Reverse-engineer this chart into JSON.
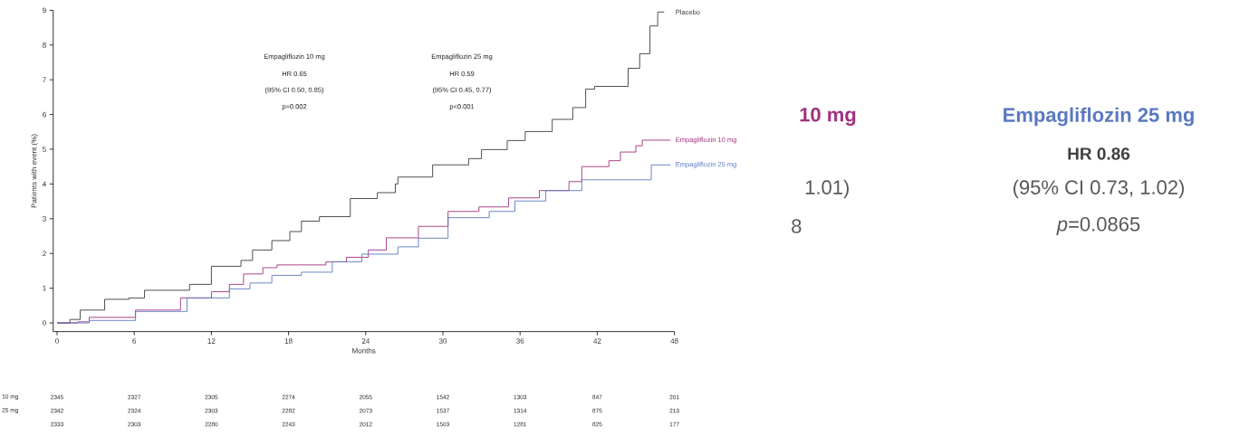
{
  "chart_data": {
    "type": "step",
    "xlabel": "Months",
    "ylabel": "Patients with event (%)",
    "legend": "right",
    "xlim": [
      -0.3,
      48
    ],
    "ylim": [
      -0.25,
      9
    ],
    "xticks": [
      0,
      6,
      12,
      18,
      24,
      30,
      36,
      42,
      48
    ],
    "yticks": [
      0,
      1,
      2,
      3,
      4,
      5,
      6,
      7,
      8,
      9
    ],
    "series": [
      {
        "name": "Placebo",
        "color": "#3c3c3c",
        "x": [
          0,
          1,
          1.8,
          3.7,
          5.6,
          6.8,
          10.3,
          12,
          14.3,
          15.2,
          16.7,
          18.1,
          19,
          20.4,
          22.8,
          24.9,
          26.3,
          26.5,
          29.2,
          32,
          33,
          35,
          36.4,
          38.5,
          40.1,
          41.1,
          41.8,
          44.4,
          45.3,
          46.1,
          46.7,
          47.2
        ],
        "values": [
          0,
          0.1,
          0.37,
          0.68,
          0.72,
          0.94,
          1.11,
          1.63,
          1.8,
          2.1,
          2.37,
          2.63,
          2.93,
          3.06,
          3.58,
          3.75,
          4.0,
          4.2,
          4.55,
          4.73,
          4.99,
          5.25,
          5.51,
          5.86,
          6.2,
          6.73,
          6.81,
          7.33,
          7.75,
          8.55,
          8.95,
          8.95
        ]
      },
      {
        "name": "Empagliflozin 10 mg",
        "color": "#a0307f",
        "x": [
          0,
          1.6,
          2.5,
          6.1,
          9.6,
          12,
          13.4,
          14.5,
          16,
          17.1,
          20.9,
          22.5,
          24.2,
          25.6,
          28.1,
          30.4,
          32.8,
          35.1,
          37.5,
          39.8,
          40.8,
          42.9,
          43.8,
          45,
          45.5,
          47.7
        ],
        "values": [
          0,
          0.03,
          0.16,
          0.37,
          0.72,
          0.9,
          1.11,
          1.41,
          1.59,
          1.67,
          1.76,
          1.89,
          2.1,
          2.45,
          2.78,
          3.21,
          3.34,
          3.6,
          3.81,
          4.07,
          4.5,
          4.67,
          4.92,
          5.1,
          5.26,
          5.26
        ]
      },
      {
        "name": "Empagliflozin 25 mg",
        "color": "#5a78c0",
        "x": [
          0,
          2.5,
          6.1,
          10.1,
          13.4,
          15,
          16.7,
          19,
          21.4,
          23.7,
          26.5,
          28.1,
          30.4,
          33.6,
          35.6,
          38,
          40.8,
          46.2,
          47.7
        ],
        "values": [
          0,
          0.07,
          0.33,
          0.72,
          0.98,
          1.15,
          1.37,
          1.46,
          1.76,
          1.98,
          2.19,
          2.44,
          3.03,
          3.21,
          3.51,
          3.81,
          4.12,
          4.55,
          4.55
        ]
      }
    ],
    "annotations": [
      "Empagliflozin 10 mg",
      "HR 0.65",
      "(95% CI 0.50, 0.85)",
      "p=0.002",
      "Empagliflozin 25 mg",
      "HR 0.59",
      "(95% CI 0.45, 0.77)",
      "p<0.001",
      "10 mg",
      "1.01)",
      "8",
      "Empagliflozin 25 mg",
      "HR 0.86",
      "(95% CI 0.73, 1.02)",
      "*p*=0.0865",
      "10 mg",
      "25 mg",
      "2345",
      "2327",
      "2305",
      "2274",
      "2055",
      "1542",
      "1303",
      "847",
      "201",
      "2342",
      "2324",
      "2303",
      "2282",
      "2073",
      "1537",
      "1314",
      "875",
      "213",
      "2333",
      "2303",
      "2280",
      "2243",
      "2012",
      "1503",
      "1281",
      "825",
      "177"
    ]
  }
}
